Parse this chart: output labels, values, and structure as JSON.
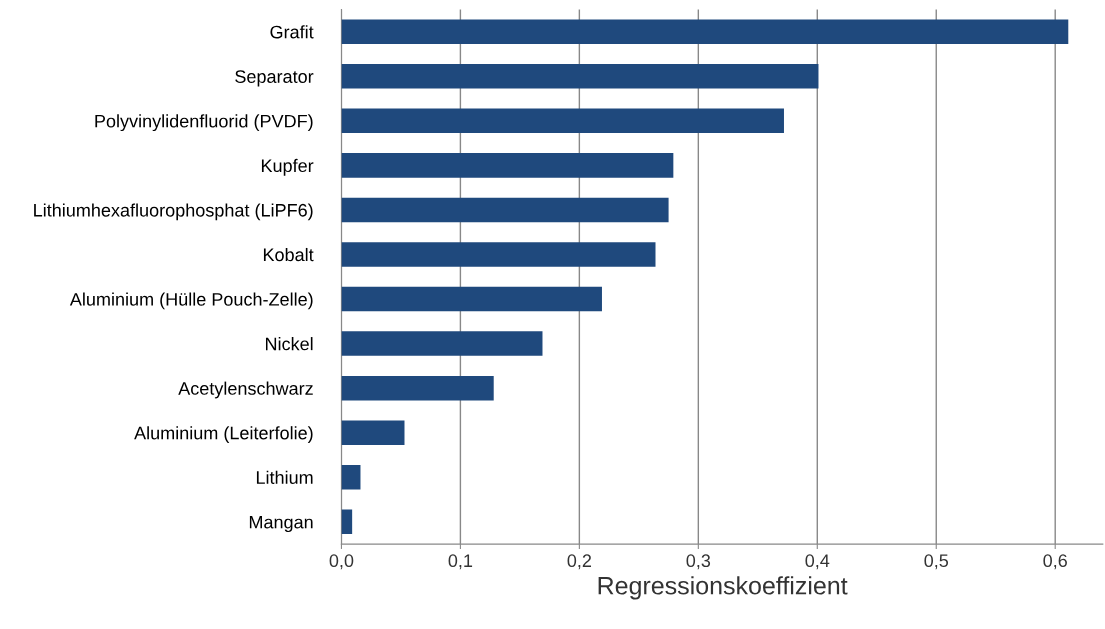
{
  "chart_data": {
    "type": "bar",
    "orientation": "horizontal",
    "xlabel": "Regressionskoeffizient",
    "categories": [
      "Grafit",
      "Separator",
      "Polyvinylidenfluorid (PVDF)",
      "Kupfer",
      "Lithiumhexafluorophosphat (LiPF6)",
      "Kobalt",
      "Aluminium (Hülle Pouch-Zelle)",
      "Nickel",
      "Acetylenschwarz",
      "Aluminium (Leiterfolie)",
      "Lithium",
      "Mangan"
    ],
    "values": [
      0.611,
      0.401,
      0.372,
      0.279,
      0.275,
      0.264,
      0.219,
      0.169,
      0.128,
      0.053,
      0.016,
      0.009
    ],
    "color": "#1f497d",
    "xlim": [
      0,
      0.64
    ],
    "xticks": [
      {
        "value": 0,
        "label": "0,0"
      },
      {
        "value": 0.1,
        "label": "0,1"
      },
      {
        "value": 0.2,
        "label": "0,2"
      },
      {
        "value": 0.3,
        "label": "0,3"
      },
      {
        "value": 0.4,
        "label": "0,4"
      },
      {
        "value": 0.5,
        "label": "0,5"
      },
      {
        "value": 0.6,
        "label": "0,6"
      }
    ],
    "grid": "x"
  }
}
